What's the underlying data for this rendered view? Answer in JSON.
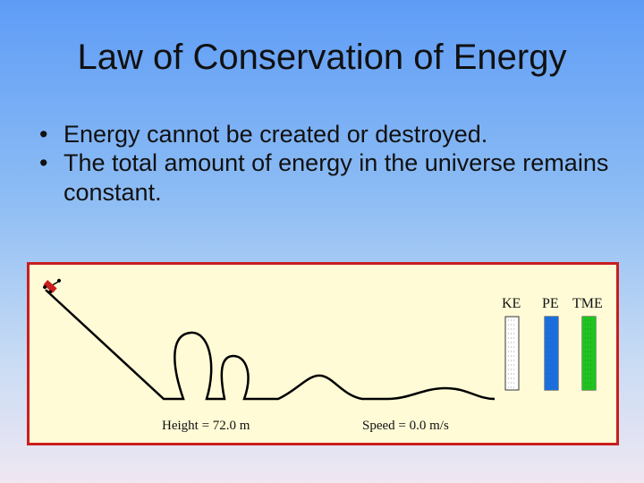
{
  "slide": {
    "title": "Law of Conservation of Energy",
    "bullets": [
      "Energy cannot be created or destroyed.",
      "The total amount of energy in the universe remains constant."
    ]
  },
  "simulation": {
    "height_label": "Height = 72.0 m",
    "speed_label": "Speed = 0.0 m/s",
    "bars": [
      {
        "label": "KE",
        "fill": 0.0,
        "color": "#ffffff"
      },
      {
        "label": "PE",
        "fill": 1.0,
        "color": "#1a6fe0"
      },
      {
        "label": "TME",
        "fill": 1.0,
        "color": "#1fc41f"
      }
    ],
    "track_color": "#000000",
    "border_color": "#c81f1f",
    "background_color": "#fffbd6"
  }
}
